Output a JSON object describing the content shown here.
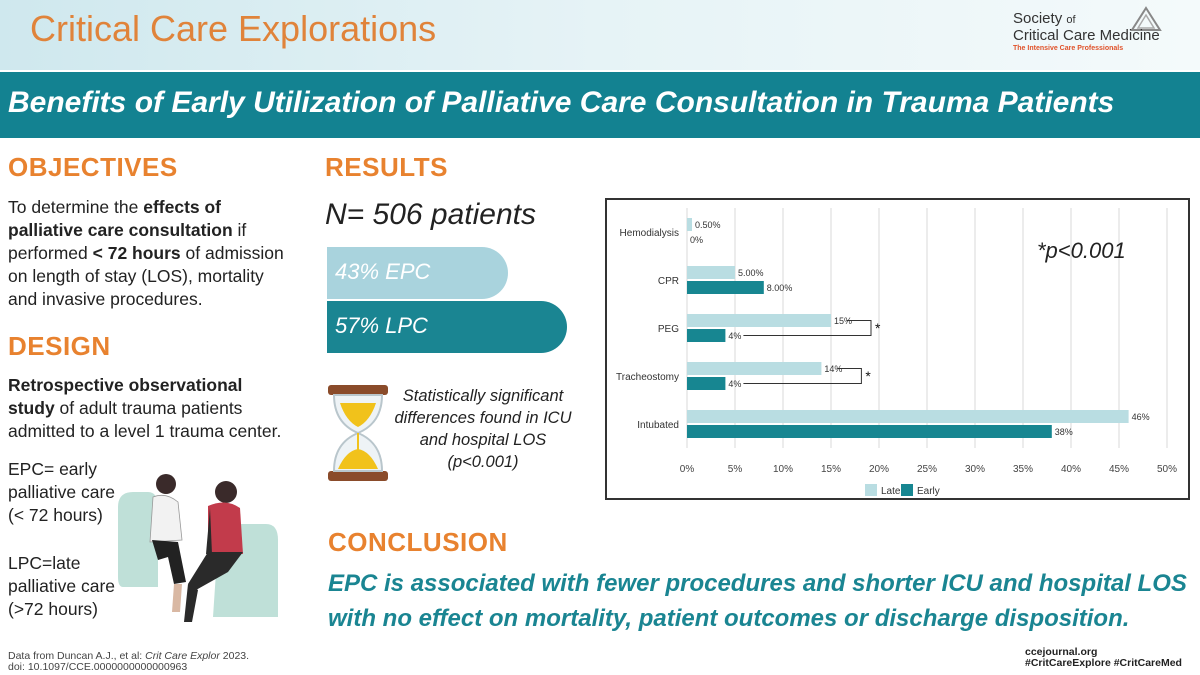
{
  "header": {
    "journal": "Critical Care Explorations",
    "society_line1": "Society",
    "society_of": "of",
    "society_line2": "Critical Care Medicine",
    "society_tagline": "The Intensive Care Professionals"
  },
  "banner": {
    "title": "Benefits of Early Utilization of Palliative Care Consultation in Trauma Patients"
  },
  "objectives": {
    "heading": "OBJECTIVES",
    "t1": "To determine the ",
    "b1": "effects of palliative care consultation",
    "t2": " if performed ",
    "b2": "< 72 hours",
    "t3": " of admission on length of stay (LOS), mortality and invasive procedures."
  },
  "design": {
    "heading": "DESIGN",
    "b1": "Retrospective observational study",
    "t1": " of adult trauma patients admitted to a level 1 trauma center.",
    "epc_def": "EPC= early palliative care (< 72 hours)",
    "lpc_def": "LPC=late palliative care (>72 hours)"
  },
  "results": {
    "heading": "RESULTS",
    "n_patients": "N= 506 patients",
    "epc_label": "43% EPC",
    "lpc_label": "57% LPC",
    "note": "Statistically significant differences found in ICU and hospital LOS (p<0.001)"
  },
  "chart_data": {
    "type": "bar",
    "orientation": "horizontal",
    "categories": [
      "Hemodialysis",
      "CPR",
      "PEG",
      "Tracheostomy",
      "Intubated"
    ],
    "series": [
      {
        "name": "Late",
        "color": "#b9dde2",
        "values": [
          0.5,
          5,
          15,
          14,
          46
        ],
        "labels": [
          "0.50%",
          "5.00%",
          "15%",
          "14%",
          "46%"
        ]
      },
      {
        "name": "Early",
        "color": "#178691",
        "values": [
          0,
          8,
          4,
          4,
          38
        ],
        "labels": [
          "0%",
          "8.00%",
          "4%",
          "4%",
          "38%"
        ]
      }
    ],
    "xlim": [
      0,
      50
    ],
    "xticks": [
      "0%",
      "5%",
      "10%",
      "15%",
      "20%",
      "25%",
      "30%",
      "35%",
      "40%",
      "45%",
      "50%"
    ],
    "grid": true,
    "annotation": "*p<0.001",
    "significance_marker": "*",
    "significant_categories": [
      "PEG",
      "Tracheostomy"
    ]
  },
  "conclusion": {
    "heading": "CONCLUSION",
    "text": "EPC is associated with fewer procedures and shorter ICU and hospital LOS with no effect on mortality, patient outcomes or discharge disposition."
  },
  "footer": {
    "cite_prefix": "Data from  Duncan A.J., et al: ",
    "cite_journal": "Crit Care Explor",
    "cite_year": " 2023.",
    "doi": "doi: 10.1097/CCE.0000000000000963",
    "site": "ccejournal.org",
    "tags": "#CritCareExplore #CritCareMed"
  },
  "colors": {
    "orange": "#e8822f",
    "teal": "#1a8592",
    "light_teal": "#a9d3dd"
  }
}
